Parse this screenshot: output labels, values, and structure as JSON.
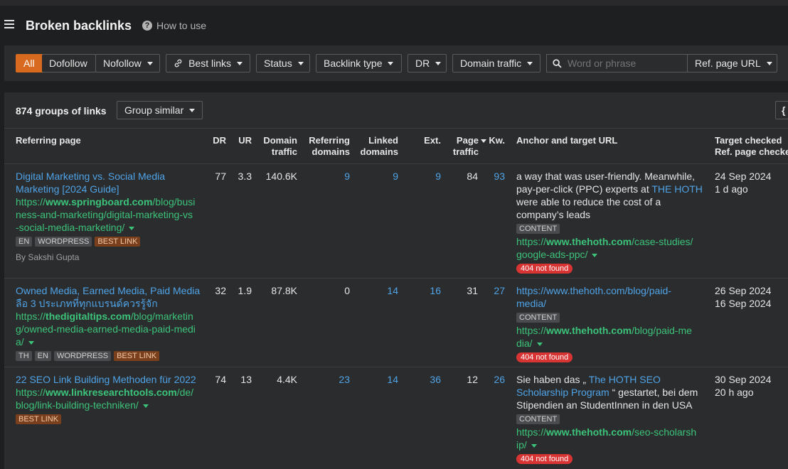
{
  "header": {
    "title": "Broken backlinks",
    "how_to_use": "How to use"
  },
  "filters": {
    "all": "All",
    "dofollow": "Dofollow",
    "nofollow": "Nofollow",
    "best_links": "Best links",
    "status": "Status",
    "backlink_type": "Backlink type",
    "dr": "DR",
    "domain_traffic": "Domain traffic",
    "search_placeholder": "Word or phrase",
    "ref_page_url": "Ref. page URL"
  },
  "summary": {
    "groups": "874 groups of links",
    "group_similar": "Group similar",
    "corner_label": "{"
  },
  "columns": {
    "referring_page": "Referring page",
    "dr": "DR",
    "ur": "UR",
    "domain_traffic_1": "Domain",
    "domain_traffic_2": "traffic",
    "referring_domains_1": "Referring",
    "referring_domains_2": "domains",
    "linked_domains_1": "Linked",
    "linked_domains_2": "domains",
    "ext": "Ext.",
    "page_traffic_1": "Page",
    "page_traffic_2": "traffic",
    "kw": "Kw.",
    "anchor": "Anchor and target URL",
    "target_checked": "Target checked",
    "ref_checked": "Ref. page checked"
  },
  "rows": [
    {
      "title_1": "Digital Marketing vs. Social Media",
      "title_2": "Marketing [2024 Guide]",
      "url_prefix": "https://",
      "url_domain": "www.springboard.com",
      "url_1": "/blog/busi",
      "url_2": "ness-and-marketing/digital-marketing-vs",
      "url_3": "-social-media-marketing/",
      "tags": [
        "EN",
        "WORDPRESS"
      ],
      "best": "BEST LINK",
      "author": "By Sakshi Gupta",
      "dr": "77",
      "ur": "3.3",
      "domain_traffic": "140.6K",
      "referring_domains": "9",
      "linked_domains": "9",
      "ext": "9",
      "page_traffic": "84",
      "kw": "93",
      "anchor_1": "a way that was user-friendly. Meanwhile,",
      "anchor_2a": "pay-per-click (PPC) experts at ",
      "anchor_2b": "THE HOTH",
      "anchor_3": "were able to reduce the cost of a",
      "anchor_4": "company’s leads",
      "content": "CONTENT",
      "target_prefix": "https://",
      "target_domain": "www.thehoth.com",
      "target_1": "/case-studies/",
      "target_2": "google-ads-ppc/",
      "status": "404 not found",
      "target_checked": "24 Sep 2024",
      "ref_checked": "1 d ago"
    },
    {
      "title_1": "Owned Media, Earned Media, Paid Media",
      "title_2": "ลือ 3 ประเภทที่ทุกแบรนด์ควรรู้จัก",
      "url_prefix": "https://",
      "url_domain": "thedigitaltips.com",
      "url_1": "/blog/marketin",
      "url_2": "g/owned-media-earned-media-paid-medi",
      "url_3": "a/",
      "tags": [
        "TH",
        "EN",
        "WORDPRESS"
      ],
      "best": "BEST LINK",
      "dr": "32",
      "ur": "1.9",
      "domain_traffic": "87.8K",
      "referring_domains": "0",
      "linked_domains": "14",
      "ext": "16",
      "page_traffic": "31",
      "kw": "27",
      "anchor_1": "https://www.thehoth.com/blog/paid-",
      "anchor_2": "media/",
      "content": "CONTENT",
      "target_prefix": "https://",
      "target_domain": "www.thehoth.com",
      "target_1": "/blog/paid-me",
      "target_2": "dia/",
      "status": "404 not found",
      "target_checked": "26 Sep 2024",
      "ref_checked": "16 Sep 2024"
    },
    {
      "title_1": "22 SEO Link Building Methoden für 2022",
      "url_prefix": "https://",
      "url_domain": "www.linkresearchtools.com",
      "url_1": "/de/",
      "url_2": "blog/link-building-techniken/",
      "best": "BEST LINK",
      "dr": "74",
      "ur": "13",
      "domain_traffic": "4.4K",
      "referring_domains": "23",
      "linked_domains": "14",
      "ext": "36",
      "page_traffic": "12",
      "kw": "26",
      "anchor_1a": "Sie haben das „ ",
      "anchor_1b": "The HOTH SEO",
      "anchor_2a": "Scholarship Program",
      "anchor_2b": " “ gestartet, bei dem",
      "anchor_3": "Stipendien an StudentInnen in den USA",
      "content": "CONTENT",
      "target_prefix": "https://",
      "target_domain": "www.thehoth.com",
      "target_1": "/seo-scholarsh",
      "target_2": "ip/",
      "status": "404 not found",
      "target_checked": "30 Sep 2024",
      "ref_checked": "20 h ago"
    }
  ]
}
